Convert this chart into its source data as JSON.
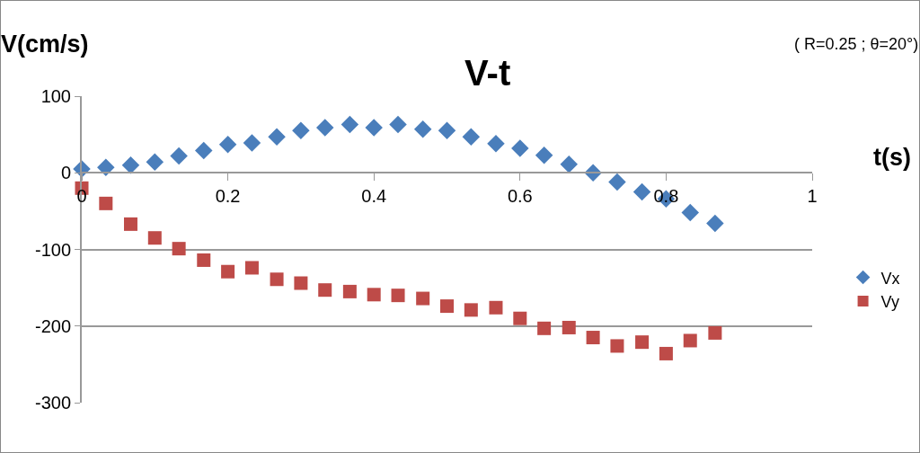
{
  "chart_data": {
    "type": "scatter",
    "title": "V-t",
    "xlabel": "t(s)",
    "ylabel": "V(cm/s)",
    "annotations": [
      "( R=0.25 ; θ=20°)"
    ],
    "x": [
      0,
      0.033,
      0.067,
      0.1,
      0.133,
      0.167,
      0.2,
      0.233,
      0.267,
      0.3,
      0.333,
      0.367,
      0.4,
      0.433,
      0.467,
      0.5,
      0.533,
      0.567,
      0.6,
      0.633,
      0.667,
      0.7,
      0.733,
      0.767,
      0.8,
      0.833,
      0.867
    ],
    "series": [
      {
        "name": "Vx",
        "color": "#4a7ebb",
        "marker": "diamond",
        "values": [
          5,
          7,
          10,
          14,
          22,
          29,
          37,
          39,
          47,
          55,
          59,
          63,
          59,
          63,
          57,
          55,
          47,
          38,
          32,
          23,
          11,
          0,
          -12,
          -25,
          -34,
          -52,
          -66
        ]
      },
      {
        "name": "Vy",
        "color": "#be4b48",
        "marker": "square",
        "values": [
          -20,
          -40,
          -67,
          -85,
          -99,
          -114,
          -129,
          -124,
          -139,
          -144,
          -153,
          -155,
          -159,
          -160,
          -164,
          -174,
          -179,
          -176,
          -190,
          -203,
          -202,
          -215,
          -226,
          -221,
          -236,
          -219,
          -209
        ]
      }
    ],
    "xlim": [
      0,
      1
    ],
    "xticks": [
      0,
      0.2,
      0.4,
      0.6,
      0.8,
      1
    ],
    "ylim": [
      -300,
      100
    ],
    "yticks": [
      -300,
      -200,
      -100,
      0,
      100
    ],
    "grid": "y",
    "legend": "right"
  }
}
